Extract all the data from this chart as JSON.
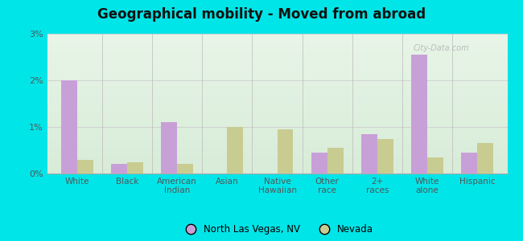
{
  "title": "Geographical mobility - Moved from abroad",
  "categories": [
    "White",
    "Black",
    "American\nIndian",
    "Asian",
    "Native\nHawaiian",
    "Other\nrace",
    "2+\nraces",
    "White\nalone",
    "Hispanic"
  ],
  "nlv_values": [
    2.0,
    0.2,
    1.1,
    0.0,
    0.0,
    0.45,
    0.85,
    2.55,
    0.45
  ],
  "nv_values": [
    0.3,
    0.25,
    0.2,
    1.0,
    0.95,
    0.55,
    0.75,
    0.35,
    0.65
  ],
  "nlv_color": "#c8a0d8",
  "nv_color": "#c8cc90",
  "bg_gradient_top": "#e8f5e8",
  "bg_gradient_bottom": "#d8ecd8",
  "outer_color": "#00e5e8",
  "ylim": [
    0,
    3.0
  ],
  "yticks": [
    0,
    1,
    2,
    3
  ],
  "ytick_labels": [
    "0%",
    "1%",
    "2%",
    "3%"
  ],
  "legend_nlv": "North Las Vegas, NV",
  "legend_nv": "Nevada",
  "bar_width": 0.32
}
